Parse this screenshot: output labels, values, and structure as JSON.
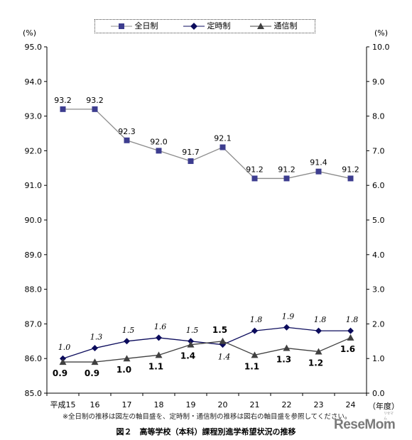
{
  "chart_data": {
    "type": "line",
    "categories": [
      "平成15",
      "16",
      "17",
      "18",
      "19",
      "20",
      "21",
      "22",
      "23",
      "24"
    ],
    "x_unit": "（年度）",
    "left_axis": {
      "unit": "(%)",
      "ylim": [
        85.0,
        95.0
      ],
      "ticks": [
        "85.0",
        "86.0",
        "87.0",
        "88.0",
        "89.0",
        "90.0",
        "91.0",
        "92.0",
        "93.0",
        "94.0",
        "95.0"
      ]
    },
    "right_axis": {
      "unit": "(%)",
      "ylim": [
        0.0,
        10.0
      ],
      "ticks": [
        "0.0",
        "1.0",
        "2.0",
        "3.0",
        "4.0",
        "5.0",
        "6.0",
        "7.0",
        "8.0",
        "9.0",
        "10.0"
      ]
    },
    "series": [
      {
        "name": "全日制",
        "axis": "left",
        "marker": "square",
        "color": "#8c8c8c",
        "marker_color": "#3d3d8f",
        "values": [
          93.2,
          93.2,
          92.3,
          92.0,
          91.7,
          92.1,
          91.2,
          91.2,
          91.4,
          91.2
        ],
        "labels": [
          "93.2",
          "93.2",
          "92.3",
          "92.0",
          "91.7",
          "92.1",
          "91.2",
          "91.2",
          "91.4",
          "91.2"
        ]
      },
      {
        "name": "定時制",
        "axis": "right",
        "marker": "diamond",
        "color": "#0b0b5c",
        "marker_color": "#0b0b5c",
        "values": [
          1.0,
          1.3,
          1.5,
          1.6,
          1.5,
          1.4,
          1.8,
          1.9,
          1.8,
          1.8
        ],
        "labels": [
          "1.0",
          "1.3",
          "1.5",
          "1.6",
          "1.5",
          "1.4",
          "1.8",
          "1.9",
          "1.8",
          "1.8"
        ]
      },
      {
        "name": "通信制",
        "axis": "right",
        "marker": "triangle",
        "color": "#404040",
        "marker_color": "#404040",
        "values": [
          0.9,
          0.9,
          1.0,
          1.1,
          1.4,
          1.5,
          1.1,
          1.3,
          1.2,
          1.6
        ],
        "labels": [
          "0.9",
          "0.9",
          "1.0",
          "1.1",
          "1.4",
          "1.5",
          "1.1",
          "1.3",
          "1.2",
          "1.6"
        ]
      }
    ],
    "note": "※全日制の推移は図左の軸目盛を、定時制・通信制の推移は図右の軸目盛を参照してください。",
    "caption": "図２　高等学校（本科）課程別進学希望状況の推移",
    "grid": false,
    "legend_position": "top"
  },
  "brand": {
    "name": "ReseMom",
    "tagline": "リセマム"
  }
}
